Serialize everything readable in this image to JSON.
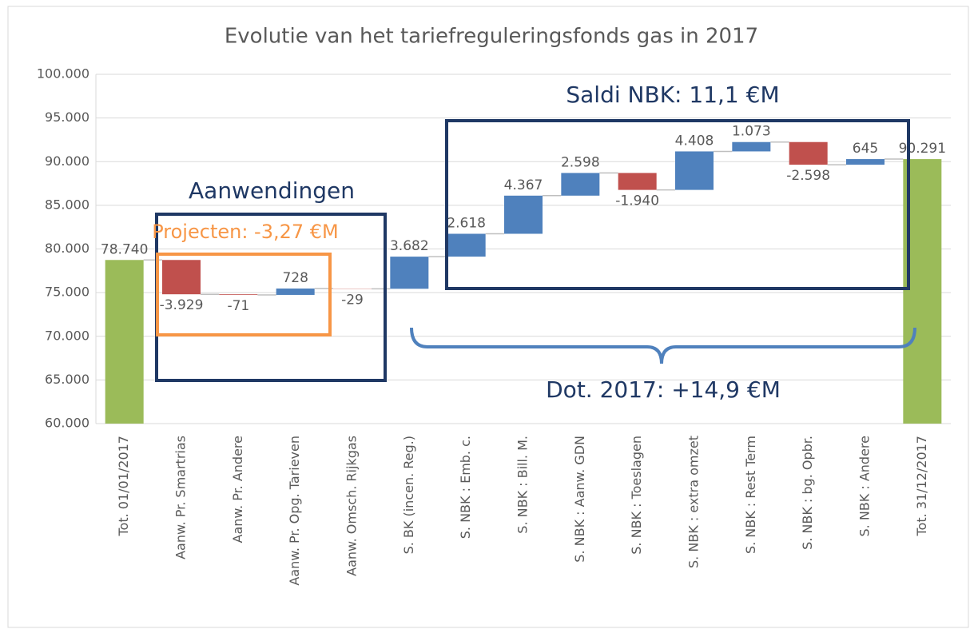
{
  "chart_data": {
    "type": "waterfall",
    "title": "Evolutie van het tariefreguleringsfonds gas in 2017",
    "categories": [
      "Tot. 01/01/2017",
      "Aanw. Pr. Smartrias",
      "Aanw. Pr. Andere",
      "Aanw. Pr. Opg. Tarieven",
      "Aanw. Omsch. Rijkgas",
      "S. BK (incen. Reg.)",
      "S. NBK : Emb. c.",
      "S. NBK : Bill. M.",
      "S. NBK : Aanw. GDN",
      "S. NBK : Toeslagen",
      "S. NBK : extra omzet",
      "S. NBK : Rest Term",
      "S. NBK : bg. Opbr.",
      "S. NBK : Andere",
      "Tot. 31/12/2017"
    ],
    "values": [
      78740,
      -3929,
      -71,
      728,
      -29,
      3682,
      2618,
      4367,
      2598,
      -1940,
      4408,
      1073,
      -2598,
      645,
      90291
    ],
    "value_labels": [
      "78.740",
      "-3.929",
      "-71",
      "728",
      "-29",
      "3.682",
      "2.618",
      "4.367",
      "2.598",
      "-1.940",
      "4.408",
      "1.073",
      "-2.598",
      "645",
      "90.291"
    ],
    "is_total": [
      true,
      false,
      false,
      false,
      false,
      false,
      false,
      false,
      false,
      false,
      false,
      false,
      false,
      false,
      true
    ],
    "increase_color": "#4f81bd",
    "decrease_color": "#c0504d",
    "total_color": "#9bbb59",
    "ylim": [
      60000,
      100000
    ],
    "yticks": [
      {
        "value": 60000,
        "label": "60.000"
      },
      {
        "value": 65000,
        "label": "65.000"
      },
      {
        "value": 70000,
        "label": "70.000"
      },
      {
        "value": 75000,
        "label": "75.000"
      },
      {
        "value": 80000,
        "label": "80.000"
      },
      {
        "value": 85000,
        "label": "85.000"
      },
      {
        "value": 90000,
        "label": "90.000"
      },
      {
        "value": 95000,
        "label": "95.000"
      },
      {
        "value": 100000,
        "label": "100.000"
      }
    ],
    "grid": true,
    "annotations": [
      "Aanwendingen",
      "Projecten: -3,27 €M",
      "Saldi NBK: 11,1 €M",
      "Dot. 2017: +14,9 €M"
    ]
  }
}
